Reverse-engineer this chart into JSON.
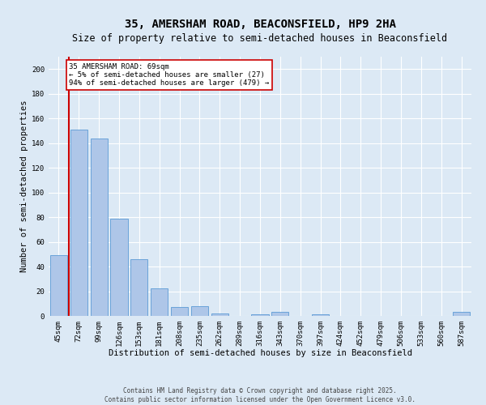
{
  "title_line1": "35, AMERSHAM ROAD, BEACONSFIELD, HP9 2HA",
  "title_line2": "Size of property relative to semi-detached houses in Beaconsfield",
  "xlabel": "Distribution of semi-detached houses by size in Beaconsfield",
  "ylabel": "Number of semi-detached properties",
  "categories": [
    "45sqm",
    "72sqm",
    "99sqm",
    "126sqm",
    "153sqm",
    "181sqm",
    "208sqm",
    "235sqm",
    "262sqm",
    "289sqm",
    "316sqm",
    "343sqm",
    "370sqm",
    "397sqm",
    "424sqm",
    "452sqm",
    "479sqm",
    "506sqm",
    "533sqm",
    "560sqm",
    "587sqm"
  ],
  "values": [
    49,
    151,
    144,
    79,
    46,
    22,
    7,
    8,
    2,
    0,
    1,
    3,
    0,
    1,
    0,
    0,
    0,
    0,
    0,
    0,
    3
  ],
  "bar_color": "#aec6e8",
  "bar_edgecolor": "#5b9bd5",
  "red_line_color": "#cc0000",
  "annotation_text": "35 AMERSHAM ROAD: 69sqm\n← 5% of semi-detached houses are smaller (27)\n94% of semi-detached houses are larger (479) →",
  "annotation_box_color": "#ffffff",
  "annotation_box_edgecolor": "#cc0000",
  "ylim": [
    0,
    210
  ],
  "yticks": [
    0,
    20,
    40,
    60,
    80,
    100,
    120,
    140,
    160,
    180,
    200
  ],
  "background_color": "#dce9f5",
  "plot_bg_color": "#dce9f5",
  "grid_color": "#ffffff",
  "footer_line1": "Contains HM Land Registry data © Crown copyright and database right 2025.",
  "footer_line2": "Contains public sector information licensed under the Open Government Licence v3.0.",
  "title_fontsize": 10,
  "subtitle_fontsize": 8.5,
  "axis_label_fontsize": 7.5,
  "tick_fontsize": 6.5,
  "annotation_fontsize": 6.5,
  "footer_fontsize": 5.5,
  "red_line_x": 0.5
}
